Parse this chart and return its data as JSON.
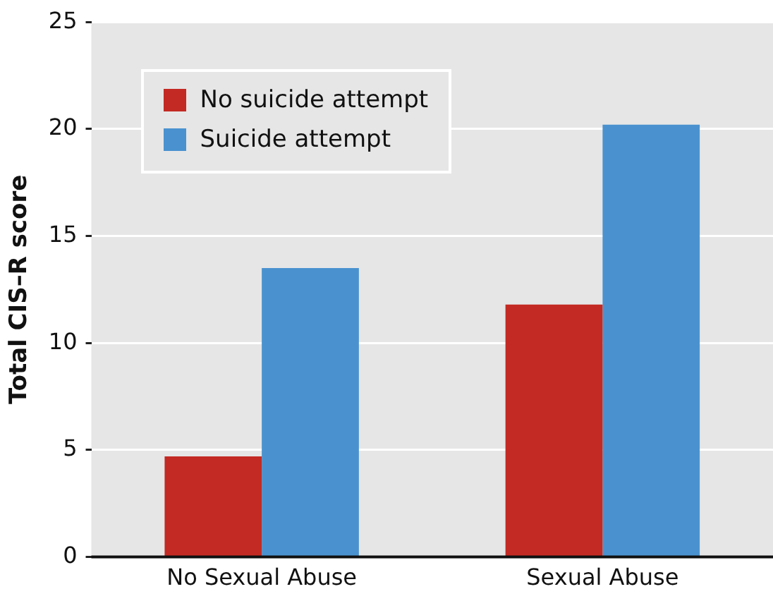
{
  "chart_data": {
    "type": "bar",
    "ylabel": "Total CIS–R score",
    "categories": [
      "No Sexual Abuse",
      "Sexual Abuse"
    ],
    "series": [
      {
        "name": "No suicide attempt",
        "color": "#c32a23",
        "values": [
          4.7,
          11.8
        ]
      },
      {
        "name": "Suicide attempt",
        "color": "#4a92cf",
        "values": [
          13.5,
          20.2
        ]
      }
    ],
    "ylim": [
      0,
      25
    ],
    "yticks": [
      0,
      5,
      10,
      15,
      20,
      25
    ],
    "grid": "y",
    "legend": "top left"
  }
}
